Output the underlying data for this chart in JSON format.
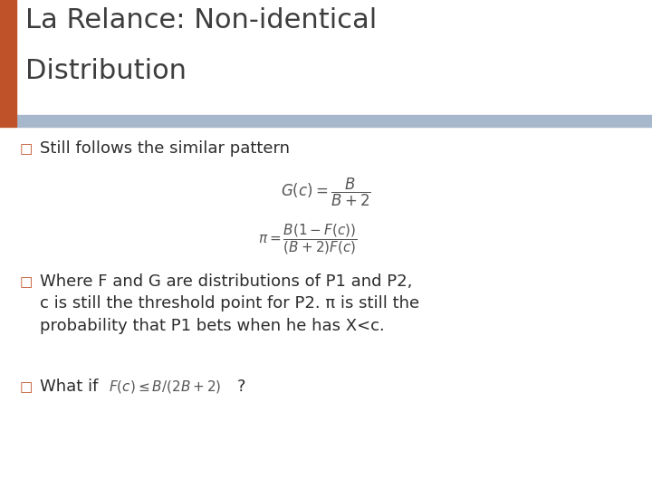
{
  "title_line1": "La Relance: Non-identical",
  "title_line2": "Distribution",
  "title_color": "#3d3d3d",
  "title_fontsize": 22,
  "accent_bar_color": "#c0522a",
  "header_bar_color": "#a8b8cc",
  "background_color": "#ffffff",
  "bullet_color": "#c0522a",
  "bullet_symbol": "□",
  "bullet1_text": "Still follows the similar pattern",
  "formula1": "$G(c) = \\dfrac{B}{B+2}$",
  "formula2": "$\\pi = \\dfrac{B(1-F(c))}{(B+2)F(c)}$",
  "bullet2_text": "Where F and G are distributions of P1 and P2,\nc is still the threshold point for P2. π is still the\nprobability that P1 bets when he has X<c.",
  "bullet3_text": "What if",
  "inline_formula": "$F(c) \\leq B/(2B+2)$",
  "bullet3_suffix": "?",
  "text_color": "#2c2c2c",
  "formula_color": "#555555",
  "body_fontsize": 13,
  "formula_fontsize": 11,
  "small_formula_fontsize": 9
}
